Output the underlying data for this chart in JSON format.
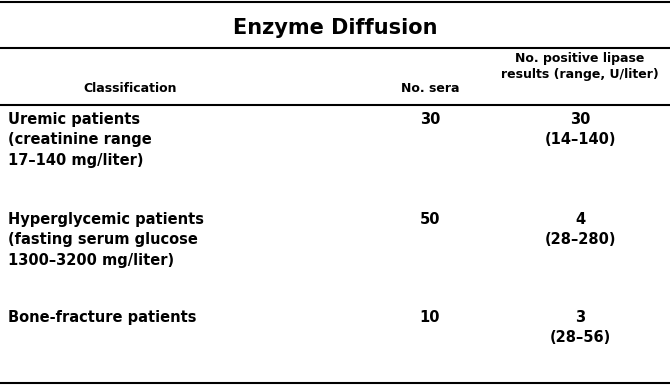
{
  "title": "Enzyme Diffusion",
  "col_header_classification": "Classification",
  "col_header_no_sera": "No. sera",
  "col_header_no_positive": "No. positive lipase\nresults (range, U/liter)",
  "rows": [
    {
      "classification": "Uremic patients\n(creatinine range\n17–140 mg/liter)",
      "no_sera": "30",
      "no_positive": "30\n(14–140)"
    },
    {
      "classification": "Hyperglycemic patients\n(fasting serum glucose\n1300–3200 mg/liter)",
      "no_sera": "50",
      "no_positive": "4\n(28–280)"
    },
    {
      "classification": "Bone-fracture patients",
      "no_sera": "10",
      "no_positive": "3\n(28–56)"
    }
  ],
  "bg_color": "#ffffff",
  "text_color": "#000000",
  "title_fontsize": 15,
  "header_fontsize": 9,
  "body_fontsize": 10.5,
  "fig_width": 6.7,
  "fig_height": 3.86,
  "dpi": 100
}
